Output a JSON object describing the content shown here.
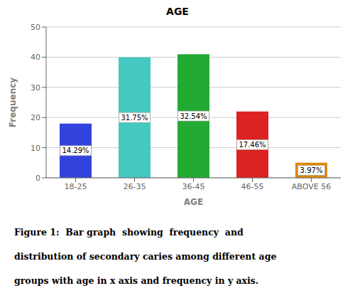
{
  "chart_data": {
    "type": "bar",
    "title": "AGE",
    "x_label": "AGE",
    "y_label": "Frequency",
    "categories": [
      "18-25",
      "26-35",
      "36-45",
      "46-55",
      "ABOVE 56"
    ],
    "values": [
      18,
      40,
      41,
      22,
      5
    ],
    "colors": [
      "#3344dd",
      "#44c8c0",
      "#22aa33",
      "#dd2222",
      "#dd8800"
    ],
    "annotations": [
      "14.29%",
      "31.75%",
      "32.54%",
      "17.46%",
      "3.97%"
    ],
    "ylim": [
      0,
      50
    ],
    "yticks": [
      0,
      10,
      20,
      30,
      40,
      50
    ],
    "grid": true,
    "caption": [
      "Figure 1:  Bar graph  showing  frequency  and",
      "distribution of secondary caries among different age",
      "groups with age in x axis and frequency in y axis."
    ]
  }
}
